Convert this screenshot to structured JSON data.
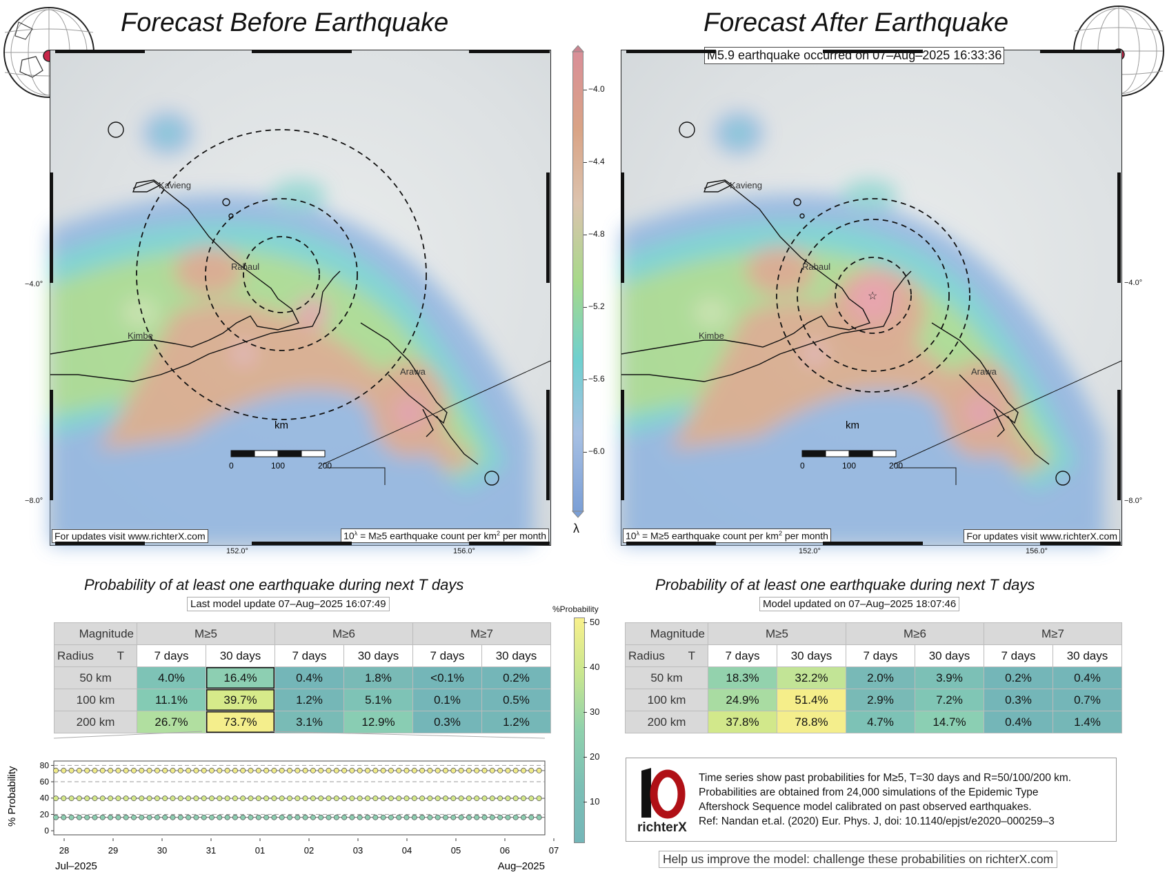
{
  "left_panel": {
    "title": "Forecast Before Earthquake",
    "footer_left": "For updates visit www.richterX.com",
    "footer_right_prefix": "10",
    "footer_right_sup": "λ",
    "footer_right_text": " = M≥5 earthquake count per km",
    "footer_right_sup2": "2",
    "footer_right_tail": " per month"
  },
  "right_panel": {
    "title": "Forecast After Earthquake",
    "event_label": "M5.9 earthquake occurred on 07–Aug–2025 16:33:36",
    "footer_left_prefix": "10",
    "footer_left_sup": "λ",
    "footer_left_text": " = M≥5 earthquake count per km",
    "footer_left_sup2": "2",
    "footer_left_tail": " per month",
    "footer_right": "For updates visit www.richterX.com"
  },
  "map": {
    "places": [
      "Kavieng",
      "Rabaul",
      "Kimbe",
      "Arawa"
    ],
    "lat_labels": [
      "−4.0°",
      "−8.0°"
    ],
    "lon_labels": [
      "152.0°",
      "156.0°"
    ],
    "scale_title": "km",
    "scale_ticks": [
      "0",
      "100",
      "200"
    ]
  },
  "lambda_colorbar": {
    "ticks": [
      "−4.0",
      "−4.4",
      "−4.8",
      "−5.2",
      "−5.6",
      "−6.0"
    ],
    "label": "λ",
    "colors": [
      "#d98f98",
      "#d9a486",
      "#dcc3ae",
      "#a7d98a",
      "#6fd0cf",
      "#a7c0e3",
      "#7b9fd6"
    ]
  },
  "prob_colorbar": {
    "title": "%Probability",
    "ticks": [
      "50",
      "40",
      "30",
      "20",
      "10"
    ]
  },
  "table_before": {
    "title": "Probability of at least one earthquake during next T days",
    "subtitle": "Last model update 07–Aug–2025 16:07:49",
    "corner_top": "Magnitude",
    "corner_left": "Radius",
    "corner_t": "T",
    "mags": [
      "M≥5",
      "M≥6",
      "M≥7"
    ],
    "periods": [
      "7 days",
      "30 days",
      "7 days",
      "30 days",
      "7 days",
      "30 days"
    ],
    "rows": [
      {
        "radius": "50 km",
        "values": [
          "4.0%",
          "16.4%",
          "0.4%",
          "1.8%",
          "<0.1%",
          "0.2%"
        ],
        "colors": [
          "#7ec3b6",
          "#8dcfb2",
          "#74b6b8",
          "#79bab6",
          "#74b6b8",
          "#74b6b8"
        ]
      },
      {
        "radius": "100 km",
        "values": [
          "11.1%",
          "39.7%",
          "1.2%",
          "5.1%",
          "0.1%",
          "0.5%"
        ],
        "colors": [
          "#84cbb4",
          "#d6ea8a",
          "#75b7b7",
          "#7ec3b6",
          "#74b6b8",
          "#74b6b8"
        ]
      },
      {
        "radius": "200 km",
        "values": [
          "26.7%",
          "73.7%",
          "3.1%",
          "12.9%",
          "0.3%",
          "1.2%"
        ],
        "colors": [
          "#b1dfa0",
          "#f4ee8c",
          "#79bbb6",
          "#89cdb3",
          "#74b6b8",
          "#75b7b7"
        ]
      }
    ]
  },
  "table_after": {
    "title": "Probability of at least one earthquake during next T days",
    "subtitle": "Model updated on 07–Aug–2025 18:07:46",
    "corner_top": "Magnitude",
    "corner_left": "Radius",
    "corner_t": "T",
    "mags": [
      "M≥5",
      "M≥6",
      "M≥7"
    ],
    "periods": [
      "7 days",
      "30 days",
      "7 days",
      "30 days",
      "7 days",
      "30 days"
    ],
    "rows": [
      {
        "radius": "50 km",
        "values": [
          "18.3%",
          "32.2%",
          "2.0%",
          "3.9%",
          "0.2%",
          "0.4%"
        ],
        "colors": [
          "#93d2ad",
          "#c2e496",
          "#78b9b7",
          "#7cc0b6",
          "#74b6b8",
          "#74b6b8"
        ]
      },
      {
        "radius": "100 km",
        "values": [
          "24.9%",
          "51.4%",
          "2.9%",
          "7.2%",
          "0.3%",
          "0.7%"
        ],
        "colors": [
          "#a9dca2",
          "#f5ee8a",
          "#79bab6",
          "#80c6b5",
          "#74b6b8",
          "#74b6b8"
        ]
      },
      {
        "radius": "200 km",
        "values": [
          "37.8%",
          "78.8%",
          "4.7%",
          "14.7%",
          "0.4%",
          "1.4%"
        ],
        "colors": [
          "#d2e88b",
          "#f4ee8c",
          "#7dc2b6",
          "#8bcfb3",
          "#74b6b8",
          "#75b7b7"
        ]
      }
    ]
  },
  "chart_data": {
    "type": "line",
    "ylabel": "% Probability",
    "yticks": [
      0,
      20,
      40,
      60,
      80
    ],
    "ylim": [
      -5,
      82
    ],
    "gridlines_dashed": [
      20,
      40,
      60,
      80
    ],
    "xtick_labels": [
      "28",
      "29",
      "30",
      "31",
      "01",
      "02",
      "03",
      "04",
      "05",
      "06",
      "07"
    ],
    "month_left": "Jul–2025",
    "month_right": "Aug–2025",
    "series": [
      {
        "name": "R=200 km",
        "value": 73.7,
        "color": "#f1ec8a"
      },
      {
        "name": "R=100 km",
        "value": 39.7,
        "color": "#d6ea8a"
      },
      {
        "name": "R=50 km",
        "value": 16.4,
        "color": "#8dcfb2"
      }
    ]
  },
  "info": {
    "logo_text": "richterX",
    "lines": [
      "Time series show past probabilities for M≥5, T=30 days and R=50/100/200 km.",
      "Probabilities are obtained from 24,000 simulations of the Epidemic Type",
      "Aftershock Sequence model calibrated on past observed earthquakes.",
      "Ref: Nandan et.al. (2020) Eur. Phys. J, doi: 10.1140/epjst/e2020–000259–3"
    ],
    "help": "Help us improve the model: challenge these probabilities on richterX.com"
  }
}
